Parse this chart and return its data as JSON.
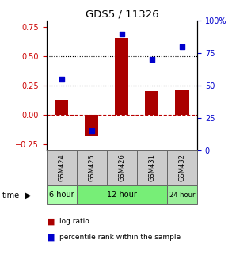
{
  "title": "GDS5 / 11326",
  "samples": [
    "GSM424",
    "GSM425",
    "GSM426",
    "GSM431",
    "GSM432"
  ],
  "log_ratio": [
    0.13,
    -0.18,
    0.65,
    0.2,
    0.21
  ],
  "percentile_rank": [
    55,
    15,
    90,
    70,
    80
  ],
  "left_ylim": [
    -0.3,
    0.8
  ],
  "right_ylim": [
    0,
    100
  ],
  "left_yticks": [
    -0.25,
    0,
    0.25,
    0.5,
    0.75
  ],
  "right_yticks": [
    0,
    25,
    50,
    75,
    100
  ],
  "hlines_dotted": [
    0.25,
    0.5
  ],
  "hline_dashed": 0.0,
  "bar_color": "#AA0000",
  "dot_color": "#0000CC",
  "bar_width": 0.45,
  "time_groups": [
    {
      "label": "6 hour",
      "indices": [
        0
      ],
      "color": "#aaffaa"
    },
    {
      "label": "12 hour",
      "indices": [
        1,
        2,
        3
      ],
      "color": "#77ee77"
    },
    {
      "label": "24 hour",
      "indices": [
        4
      ],
      "color": "#99ee99"
    }
  ],
  "legend_bar_label": "log ratio",
  "legend_dot_label": "percentile rank within the sample",
  "time_label": "time",
  "title_color": "#000000",
  "left_axis_color": "#CC0000",
  "right_axis_color": "#0000CC",
  "sample_box_color": "#cccccc",
  "sample_box_edge": "#666666"
}
